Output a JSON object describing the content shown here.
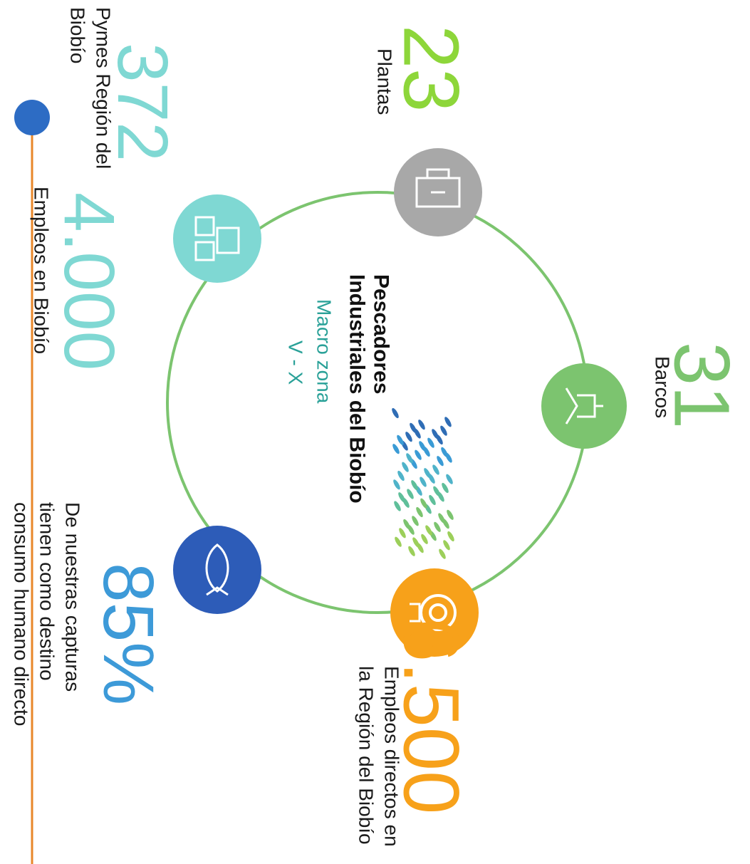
{
  "stats": [
    {
      "value": "23",
      "label": [
        "Plantas"
      ]
    },
    {
      "value": "31",
      "label": [
        "Barcos"
      ]
    },
    {
      "value": "6.500",
      "label": [
        "Empleos directos en",
        "la Región del Biobío"
      ]
    },
    {
      "value": "85%",
      "label": [
        "De nuestras capturas",
        "tienen como destino",
        "consumo humano directo"
      ]
    },
    {
      "value": "372",
      "label": [
        "Pymes Región del",
        "Biobío"
      ]
    },
    {
      "value": "4.000",
      "label": [
        "Empleos en Biobío"
      ]
    }
  ],
  "center": {
    "title": [
      "Pescadores",
      "Industriales del Biobío"
    ],
    "subtitle": [
      "Macro zona",
      "V - X"
    ]
  }
}
